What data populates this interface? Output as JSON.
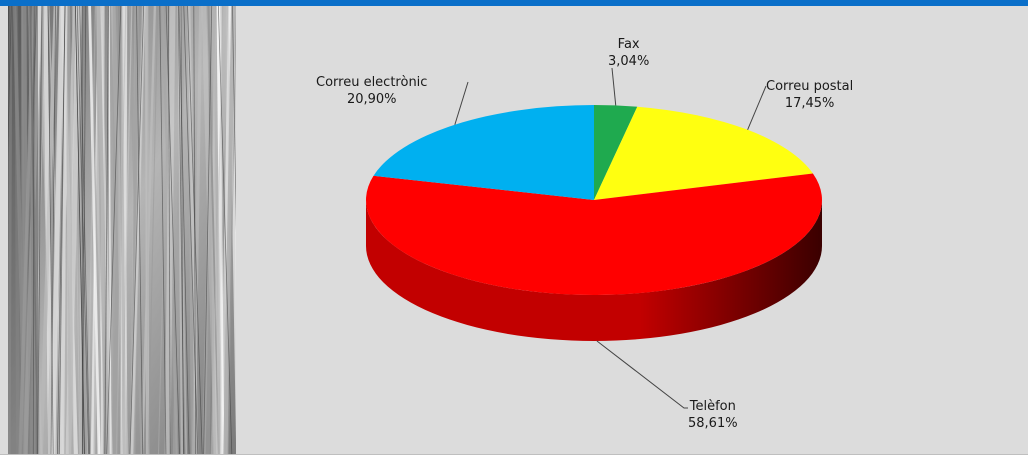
{
  "chart_data": {
    "type": "pie",
    "style": "3d",
    "start_angle_deg": 0,
    "direction": "clockwise",
    "slices": [
      {
        "label": "Fax",
        "value": 3.04,
        "value_label": "3,04%",
        "color": "#1faa4f",
        "side_color": "#127033"
      },
      {
        "label": "Correu postal",
        "value": 17.45,
        "value_label": "17,45%",
        "color": "#ffff10",
        "side_color": "#b8b800"
      },
      {
        "label": "Telèfon",
        "value": 58.61,
        "value_label": "58,61%",
        "color": "#ff0000",
        "side_color": "#c20000"
      },
      {
        "label": "Correu electrònic",
        "value": 20.9,
        "value_label": "20,90%",
        "color": "#00b0f0",
        "side_color": "#0083b4"
      }
    ]
  },
  "sidebar": {
    "image": "paper-folders-photo"
  },
  "colors": {
    "topbar": "#0a6fc9",
    "background": "#dcdcdc"
  }
}
